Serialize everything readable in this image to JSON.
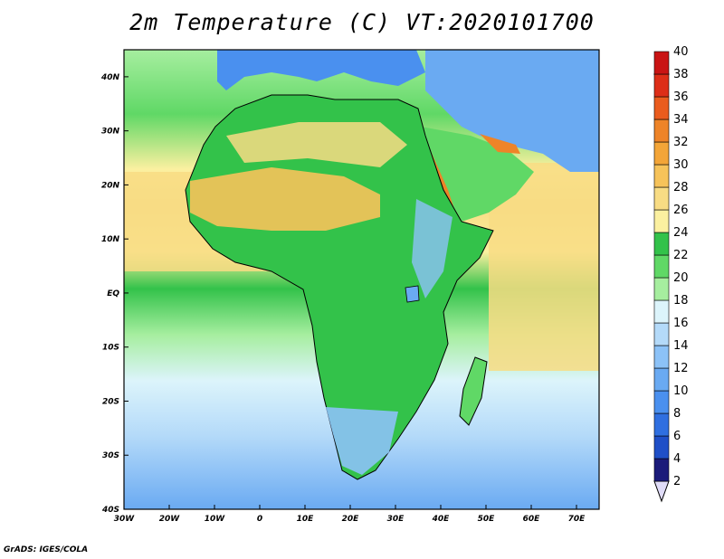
{
  "title": "2m Temperature (C) VT:2020101700",
  "credit": "GrADS: IGES/COLA",
  "map": {
    "lon_range": [
      -30,
      75
    ],
    "lat_range": [
      -40,
      45
    ],
    "lon_ticks": [
      "30W",
      "20W",
      "10W",
      "0",
      "10E",
      "20E",
      "30E",
      "40E",
      "50E",
      "60E",
      "70E"
    ],
    "lat_ticks": [
      "40N",
      "30N",
      "20N",
      "10N",
      "EQ",
      "10S",
      "20S",
      "30S",
      "40S"
    ],
    "land_color": "#33c24a"
  },
  "colorbar": {
    "levels": [
      2,
      4,
      6,
      8,
      10,
      12,
      14,
      16,
      18,
      20,
      22,
      24,
      26,
      28,
      30,
      32,
      34,
      36,
      38,
      40
    ],
    "colors": [
      "#1b1b7a",
      "#1f4fc7",
      "#2f6fe0",
      "#4a90ef",
      "#6aaaf2",
      "#8cc2f7",
      "#b4daf9",
      "#dcf4fb",
      "#a6ee9f",
      "#60d866",
      "#33c24a",
      "#fbf0a0",
      "#f8dc84",
      "#f6c35a",
      "#f3a538",
      "#ee8428",
      "#ea5c1e",
      "#dd2e18",
      "#c91414",
      "#a00a0a"
    ]
  }
}
